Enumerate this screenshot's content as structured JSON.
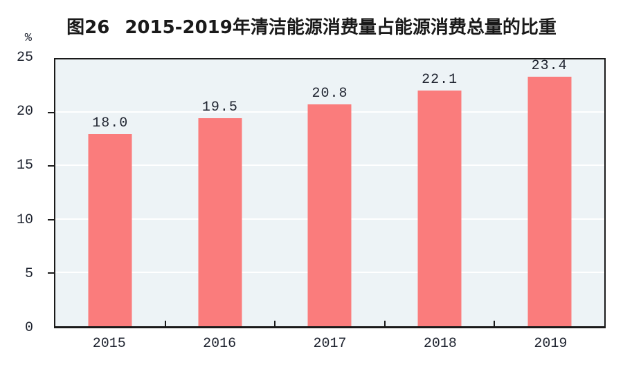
{
  "chart_data": {
    "type": "bar",
    "title": "图26  2015-2019年清洁能源消费量占能源消费总量的比重",
    "title_prefix": "图26",
    "title_main": "2015-2019年清洁能源消费量占能源消费总量的比重",
    "unit_label": "%",
    "categories": [
      "2015",
      "2016",
      "2017",
      "2018",
      "2019"
    ],
    "values": [
      18.0,
      19.5,
      20.8,
      22.1,
      23.4
    ],
    "value_labels": [
      "18.0",
      "19.5",
      "20.8",
      "22.1",
      "23.4"
    ],
    "xlabel": "",
    "ylabel": "%",
    "ylim": [
      0,
      25
    ],
    "yticks": [
      0,
      5,
      10,
      15,
      20,
      25
    ],
    "grid": true,
    "legend": false,
    "colors": {
      "bar": "#fa7c7c",
      "plot_background": "#edf3f6",
      "gridline": "#ffffff",
      "axis": "#1a1a1a",
      "text": "#1f2430",
      "page_background": "#ffffff"
    }
  }
}
